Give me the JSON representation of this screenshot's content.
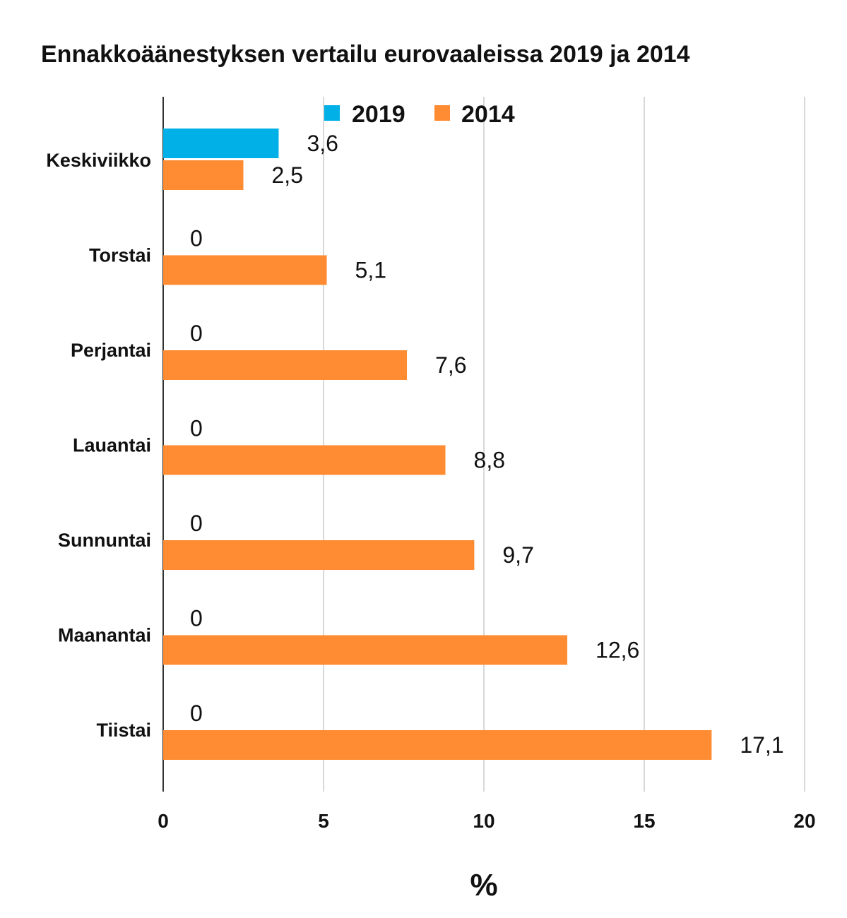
{
  "chart_data": {
    "type": "bar",
    "orientation": "horizontal",
    "title": "Ennakkoäänestyksen vertailu eurovaaleissa 2019 ja 2014",
    "categories": [
      "Keskiviikko",
      "Torstai",
      "Perjantai",
      "Lauantai",
      "Sunnuntai",
      "Maanantai",
      "Tiistai"
    ],
    "series": [
      {
        "name": "2019",
        "color": "#00b0e6",
        "values": [
          3.6,
          0,
          0,
          0,
          0,
          0,
          0
        ],
        "labels": [
          "3,6",
          "0",
          "0",
          "0",
          "0",
          "0",
          "0"
        ]
      },
      {
        "name": "2014",
        "color": "#ff8c33",
        "values": [
          2.5,
          5.1,
          7.6,
          8.8,
          9.7,
          12.6,
          17.1
        ],
        "labels": [
          "2,5",
          "5,1",
          "7,6",
          "8,8",
          "9,7",
          "12,6",
          "17,1"
        ]
      }
    ],
    "xlabel": "%",
    "ylabel": "",
    "xlim": [
      0,
      20
    ],
    "xticks": [
      0,
      5,
      10,
      15,
      20
    ],
    "xtick_labels": [
      "0",
      "5",
      "10",
      "15",
      "20"
    ],
    "grid": true,
    "legend_position": "top"
  }
}
